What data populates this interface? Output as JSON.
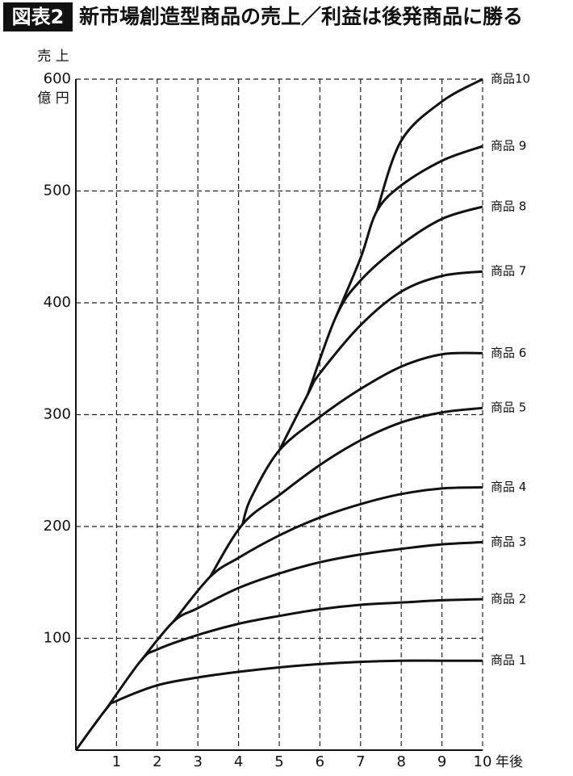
{
  "chart_data": {
    "type": "line",
    "badge": "図表2",
    "title": "新市場創造型商品の売上／利益は後発商品に勝る",
    "y_label_top": "売 上",
    "y_label_unit": "億 円",
    "x_label": "年後",
    "xlim": [
      0,
      10
    ],
    "xticks": [
      1,
      2,
      3,
      4,
      5,
      6,
      7,
      8,
      9,
      10
    ],
    "ylim": [
      0,
      600
    ],
    "yticks": [
      100,
      200,
      300,
      400,
      500,
      600
    ],
    "grid": true,
    "color": "#111111",
    "series": [
      {
        "name": "商品 1",
        "x": [
          0,
          0.75,
          1,
          2,
          3,
          4,
          5,
          6,
          7,
          8,
          9,
          10
        ],
        "values": [
          0,
          37,
          44,
          58,
          65,
          70,
          74,
          77,
          79,
          80,
          80,
          80
        ]
      },
      {
        "name": "商品 2",
        "x": [
          0.75,
          1.6,
          2,
          3,
          4,
          5,
          6,
          7,
          8,
          9,
          10
        ],
        "values": [
          37,
          80,
          90,
          103,
          113,
          120,
          126,
          130,
          132,
          134,
          135
        ]
      },
      {
        "name": "商品 3",
        "x": [
          1.6,
          2.4,
          3,
          4,
          5,
          6,
          7,
          8,
          9,
          10
        ],
        "values": [
          80,
          115,
          127,
          145,
          158,
          168,
          175,
          180,
          184,
          186
        ]
      },
      {
        "name": "商品 4",
        "x": [
          2.4,
          3.3,
          4,
          5,
          6,
          7,
          8,
          9,
          10
        ],
        "values": [
          115,
          155,
          172,
          192,
          208,
          220,
          229,
          234,
          235
        ]
      },
      {
        "name": "商品 5",
        "x": [
          3.3,
          4.1,
          5,
          6,
          7,
          8,
          9,
          10
        ],
        "values": [
          155,
          202,
          228,
          255,
          277,
          293,
          302,
          306
        ]
      },
      {
        "name": "商品 6",
        "x": [
          4.1,
          4.3,
          5,
          6,
          7,
          8,
          9,
          10
        ],
        "values": [
          202,
          225,
          268,
          298,
          323,
          343,
          354,
          355
        ]
      },
      {
        "name": "商品 7",
        "x": [
          5,
          5.7,
          6,
          7,
          8,
          9,
          10
        ],
        "values": [
          268,
          318,
          337,
          380,
          410,
          424,
          428
        ]
      },
      {
        "name": "商品 8",
        "x": [
          5.7,
          6.4,
          7,
          8,
          9,
          10
        ],
        "values": [
          318,
          388,
          420,
          452,
          475,
          486
        ]
      },
      {
        "name": "商品 9",
        "x": [
          6.4,
          7,
          7.4,
          8,
          9,
          10
        ],
        "values": [
          388,
          440,
          482,
          505,
          527,
          540
        ]
      },
      {
        "name": "商品10",
        "x": [
          7.4,
          8,
          9,
          10
        ],
        "values": [
          482,
          545,
          580,
          600
        ]
      }
    ]
  }
}
